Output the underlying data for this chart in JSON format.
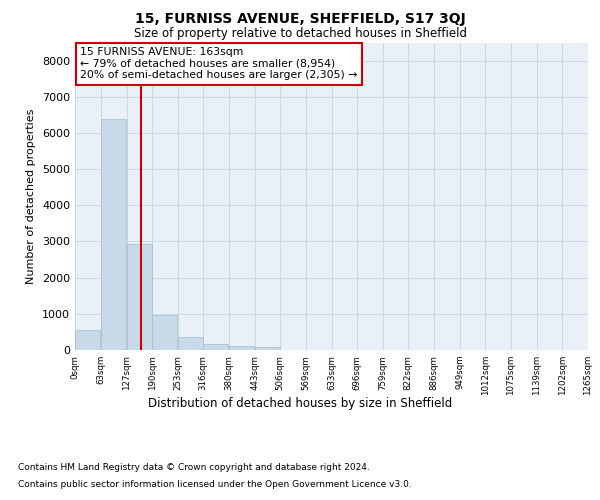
{
  "title": "15, FURNISS AVENUE, SHEFFIELD, S17 3QJ",
  "subtitle": "Size of property relative to detached houses in Sheffield",
  "xlabel": "Distribution of detached houses by size in Sheffield",
  "ylabel": "Number of detached properties",
  "footer_line1": "Contains HM Land Registry data © Crown copyright and database right 2024.",
  "footer_line2": "Contains public sector information licensed under the Open Government Licence v3.0.",
  "bar_color": "#c8daea",
  "bar_edge_color": "#a0bfd0",
  "grid_color": "#c8d8e8",
  "background_color": "#eaf0f8",
  "annotation_box_color": "#cc0000",
  "vline_color": "#cc0000",
  "vline_x": 163,
  "annotation_line1": "15 FURNISS AVENUE: 163sqm",
  "annotation_line2": "← 79% of detached houses are smaller (8,954)",
  "annotation_line3": "20% of semi-detached houses are larger (2,305) →",
  "bin_edges": [
    0,
    63,
    127,
    190,
    253,
    316,
    380,
    443,
    506,
    569,
    633,
    696,
    759,
    822,
    886,
    949,
    1012,
    1075,
    1139,
    1202,
    1265
  ],
  "bar_heights": [
    560,
    6390,
    2940,
    960,
    360,
    175,
    100,
    85,
    0,
    0,
    0,
    0,
    0,
    0,
    0,
    0,
    0,
    0,
    0,
    0
  ],
  "ylim": [
    0,
    8500
  ],
  "yticks": [
    0,
    1000,
    2000,
    3000,
    4000,
    5000,
    6000,
    7000,
    8000
  ]
}
